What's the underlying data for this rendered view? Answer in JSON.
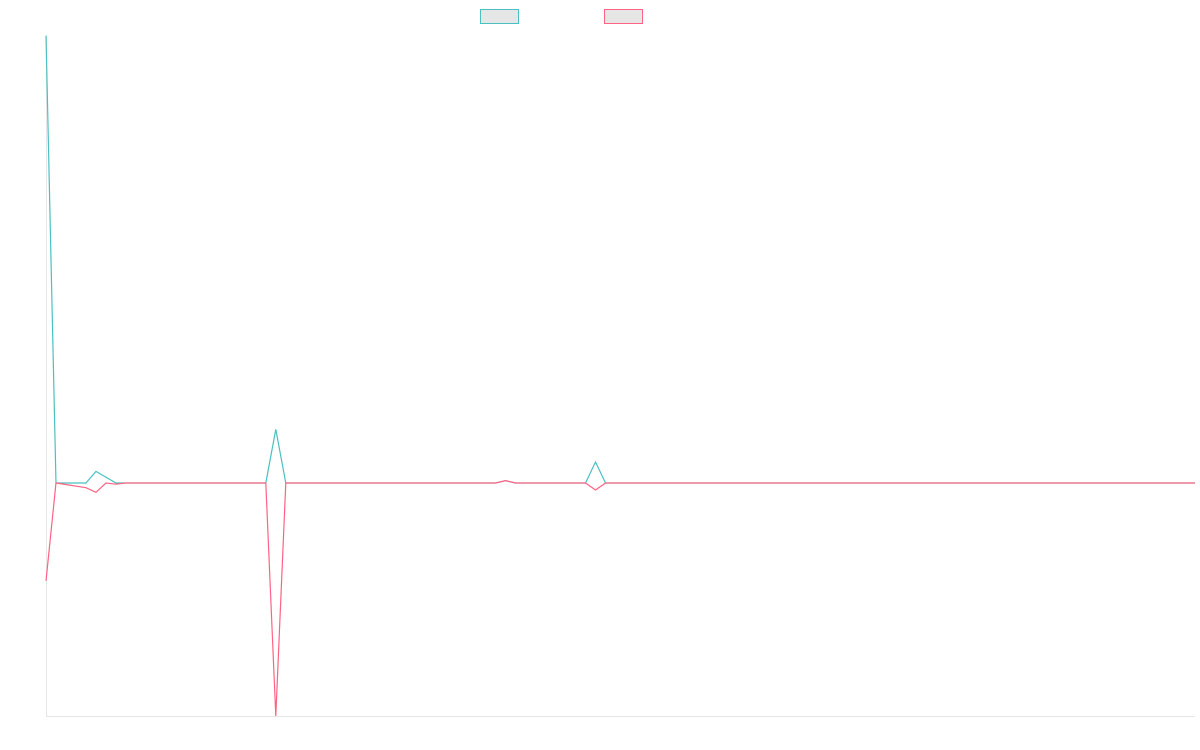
{
  "chart_data": {
    "type": "line",
    "title": "",
    "xlabel": "",
    "ylabel": "",
    "grid": false,
    "legend_position": "top-center",
    "ylim": [
      -1.0,
      1.0
    ],
    "x_count": 116,
    "series": [
      {
        "name": "",
        "color": "#4bc0c0",
        "points": [
          [
            0,
            1.92
          ],
          [
            1,
            0.0
          ],
          [
            4,
            0.0
          ],
          [
            5,
            0.05
          ],
          [
            7,
            0.0
          ],
          [
            22,
            0.0
          ],
          [
            23,
            0.23
          ],
          [
            24,
            0.0
          ],
          [
            45,
            0.0
          ],
          [
            46,
            0.01
          ],
          [
            47,
            0.0
          ],
          [
            54,
            0.0
          ],
          [
            55,
            0.09
          ],
          [
            56,
            0.0
          ],
          [
            115,
            0.0
          ]
        ]
      },
      {
        "name": "",
        "color": "#ff6384",
        "points": [
          [
            0,
            -0.42
          ],
          [
            1,
            0.0
          ],
          [
            4,
            -0.02
          ],
          [
            5,
            -0.04
          ],
          [
            6,
            0.0
          ],
          [
            7,
            -0.005
          ],
          [
            8,
            0.0
          ],
          [
            22,
            0.0
          ],
          [
            23,
            -1.0
          ],
          [
            24,
            0.0
          ],
          [
            45,
            0.0
          ],
          [
            46,
            0.01
          ],
          [
            47,
            0.0
          ],
          [
            54,
            0.0
          ],
          [
            55,
            -0.03
          ],
          [
            56,
            0.0
          ],
          [
            115,
            0.0
          ]
        ]
      }
    ]
  }
}
